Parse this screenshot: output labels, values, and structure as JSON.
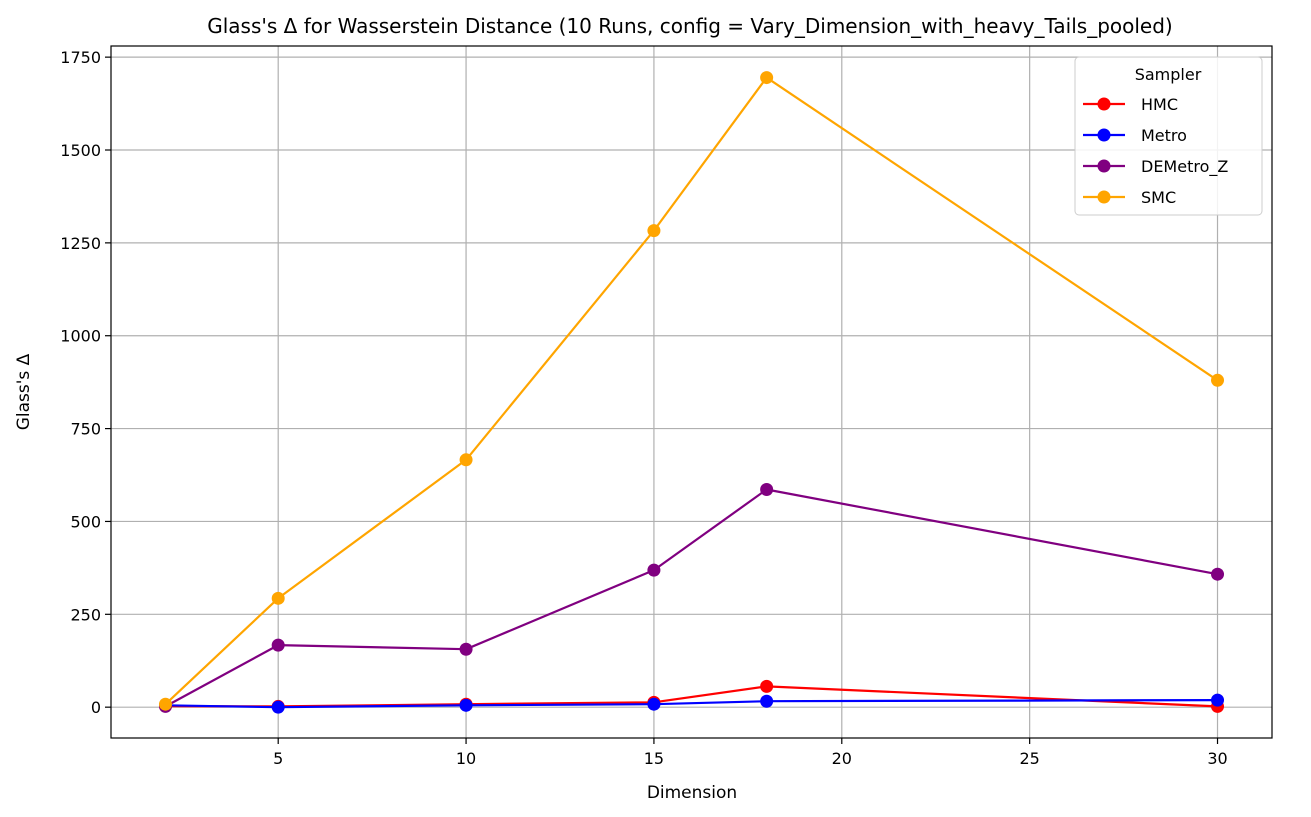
{
  "chart_data": {
    "type": "line",
    "title": "Glass's Δ for Wasserstein Distance (10 Runs, config = Vary_Dimension_with_heavy_Tails_pooled)",
    "xlabel": "Dimension",
    "ylabel": "Glass's Δ",
    "xlim": [
      0.55,
      31.45
    ],
    "ylim": [
      -83,
      1780
    ],
    "x_ticks": [
      5,
      10,
      15,
      20,
      25,
      30
    ],
    "y_ticks": [
      0,
      250,
      500,
      750,
      1000,
      1250,
      1500,
      1750
    ],
    "grid": true,
    "legend": {
      "title": "Sampler",
      "placement": "top-right"
    },
    "x": [
      2,
      5,
      10,
      15,
      18,
      30
    ],
    "series": [
      {
        "name": "HMC",
        "color": "#ff0000",
        "values": [
          3,
          2,
          8,
          13,
          56,
          2
        ]
      },
      {
        "name": "Metro",
        "color": "#0000ff",
        "values": [
          5,
          0,
          5,
          8,
          16,
          19
        ]
      },
      {
        "name": "DEMetro_Z",
        "color": "#800080",
        "values": [
          2,
          167,
          156,
          369,
          586,
          358
        ]
      },
      {
        "name": "SMC",
        "color": "#ffa500",
        "values": [
          8,
          293,
          666,
          1283,
          1695,
          880
        ]
      }
    ]
  }
}
